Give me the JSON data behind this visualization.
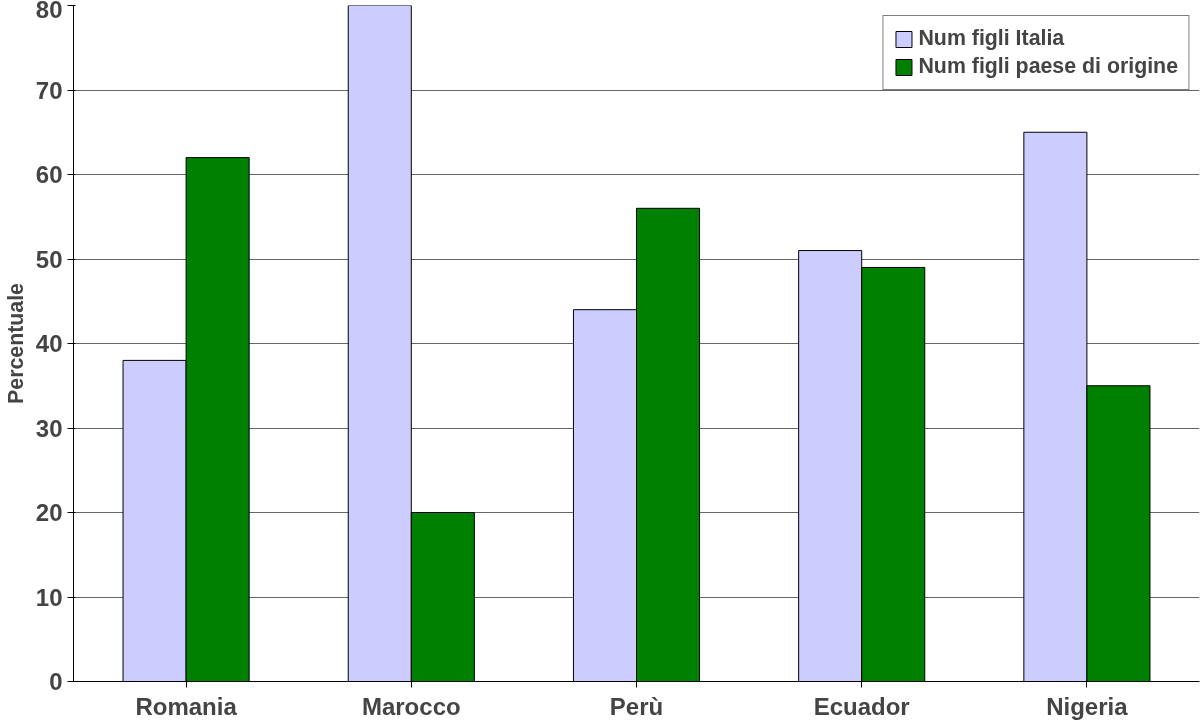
{
  "chart_data": {
    "type": "bar",
    "ylabel": "Percentuale",
    "categories": [
      "Romania",
      "Marocco",
      "Perù",
      "Ecuador",
      "Nigeria"
    ],
    "series": [
      {
        "name": "Num figli Italia",
        "color": "#ccccff",
        "values": [
          38,
          80,
          44,
          51,
          65
        ]
      },
      {
        "name": "Num figli paese di origine",
        "color": "#008000",
        "values": [
          62,
          20,
          56,
          49,
          35
        ]
      }
    ],
    "ylim": [
      0,
      80
    ],
    "yticks": [
      0,
      10,
      20,
      30,
      40,
      50,
      60,
      70,
      80
    ],
    "grid": "y",
    "legend": "top right"
  }
}
